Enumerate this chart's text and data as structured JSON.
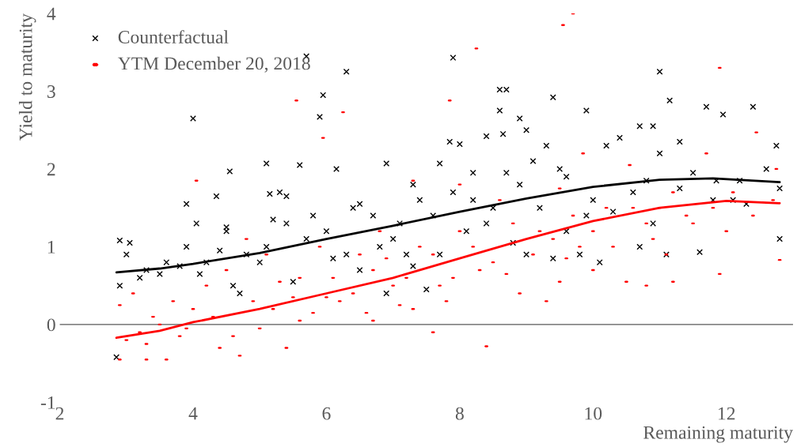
{
  "chart_data": {
    "type": "scatter",
    "xlabel": "Remaining maturity",
    "ylabel": "Yield to maturity",
    "xlim": [
      2,
      13
    ],
    "ylim": [
      -1,
      4
    ],
    "xticks": [
      2,
      4,
      6,
      8,
      10,
      12
    ],
    "yticks": [
      -1,
      0,
      1,
      2,
      3,
      4
    ],
    "grid": false,
    "legend": "top left",
    "ref_lines": [
      {
        "axis": "y",
        "value": 0,
        "color": "#595959"
      }
    ],
    "series": [
      {
        "name": "Counterfactual",
        "marker": "cross",
        "color": "#000000",
        "x": [
          4.0,
          4.35,
          4.55,
          5.1,
          5.15,
          5.3,
          5.6,
          5.7,
          5.9,
          5.95,
          6.15,
          6.3,
          6.9,
          7.3,
          7.7,
          7.85,
          7.9,
          8.0,
          8.2,
          8.4,
          8.6,
          8.6,
          8.7,
          8.65,
          8.9,
          9.0,
          9.1,
          9.3,
          9.4,
          9.5,
          9.6,
          9.9,
          10.2,
          10.4,
          10.7,
          10.9,
          11.0,
          11.0,
          11.15,
          11.3,
          11.5,
          11.7,
          11.85,
          11.95,
          12.1,
          12.2,
          12.4,
          12.6,
          12.75,
          12.8,
          12.8,
          11.6,
          11.1,
          10.7,
          10.1,
          9.8,
          9.4,
          9.0,
          8.8,
          8.5,
          8.1,
          7.7,
          7.4,
          7.1,
          6.8,
          6.5,
          6.3,
          6.0,
          5.7,
          5.4,
          5.1,
          4.8,
          4.5,
          4.2,
          3.9,
          3.6,
          3.3,
          3.0,
          2.9,
          2.85,
          2.9,
          3.05,
          3.2,
          3.5,
          3.8,
          4.1,
          4.4,
          4.7,
          5.0,
          5.2,
          5.5,
          5.8,
          6.1,
          6.4,
          6.7,
          7.0,
          7.3,
          7.6,
          7.9,
          8.2,
          8.4,
          8.9,
          9.2,
          9.6,
          10.0,
          10.3,
          10.6,
          10.9,
          11.3,
          11.8,
          12.3,
          6.9,
          7.5,
          4.6,
          3.9,
          4.05,
          4.5,
          5.4,
          6.5,
          7.2,
          8.7,
          9.9,
          10.8
        ],
        "values": [
          2.65,
          1.65,
          1.97,
          2.07,
          1.68,
          1.7,
          2.05,
          3.45,
          2.67,
          2.95,
          2.0,
          3.25,
          2.07,
          1.8,
          2.07,
          2.35,
          3.43,
          2.32,
          1.95,
          2.42,
          2.75,
          3.02,
          3.02,
          2.45,
          2.65,
          2.5,
          2.1,
          2.3,
          2.92,
          2.0,
          1.9,
          2.75,
          2.3,
          2.4,
          2.55,
          2.55,
          3.25,
          2.2,
          2.88,
          2.35,
          1.95,
          2.8,
          1.85,
          2.7,
          1.6,
          1.85,
          2.8,
          2.0,
          2.3,
          1.75,
          1.1,
          0.93,
          0.9,
          1.0,
          0.8,
          0.9,
          0.85,
          0.9,
          1.05,
          1.5,
          1.2,
          0.9,
          1.6,
          1.3,
          1.0,
          0.7,
          0.9,
          1.2,
          1.1,
          1.3,
          1.0,
          0.9,
          1.2,
          0.8,
          1.0,
          0.8,
          0.7,
          0.9,
          0.5,
          -0.42,
          1.08,
          1.05,
          0.6,
          0.65,
          0.75,
          0.65,
          0.95,
          0.4,
          0.8,
          1.35,
          0.55,
          1.4,
          0.85,
          1.5,
          1.4,
          1.1,
          0.75,
          1.4,
          1.7,
          1.6,
          1.3,
          1.8,
          1.5,
          1.2,
          1.6,
          1.45,
          1.7,
          1.3,
          1.75,
          1.6,
          1.55,
          0.4,
          0.45,
          0.5,
          1.55,
          1.3,
          1.25,
          1.65,
          1.55,
          0.9,
          1.95,
          1.4,
          1.85
        ]
      },
      {
        "name": "YTM December 20, 2018",
        "color": "#ff0000",
        "x": [
          9.7,
          9.55,
          8.25,
          11.9,
          5.55,
          6.25,
          7.85,
          12.45,
          5.95,
          9.85,
          10.55,
          11.7,
          12.75,
          4.05,
          7.3,
          8.0,
          9.5,
          11.0,
          12.8,
          11.9,
          11.2,
          10.8,
          10.0,
          9.3,
          8.4,
          7.6,
          6.7,
          5.4,
          4.7,
          3.6,
          3.3,
          2.9,
          3.0,
          3.2,
          3.5,
          3.8,
          4.0,
          4.3,
          4.6,
          4.9,
          5.2,
          5.5,
          5.8,
          6.1,
          6.4,
          6.7,
          7.0,
          7.3,
          7.6,
          7.9,
          8.2,
          8.5,
          8.8,
          9.1,
          9.4,
          9.7,
          10.0,
          10.3,
          10.6,
          10.9,
          11.2,
          11.5,
          11.8,
          12.1,
          12.4,
          12.7,
          2.9,
          3.1,
          3.4,
          3.7,
          4.2,
          4.5,
          4.8,
          5.1,
          5.6,
          5.9,
          6.2,
          6.5,
          6.8,
          7.1,
          7.4,
          7.7,
          8.0,
          8.3,
          8.6,
          8.9,
          9.2,
          9.5,
          9.8,
          10.2,
          10.5,
          10.8,
          11.1,
          11.4,
          12.0,
          3.3,
          3.9,
          4.4,
          5.0,
          5.6,
          6.0,
          6.6,
          7.2,
          7.8,
          8.7,
          9.6,
          5.3,
          6.9
        ],
        "values": [
          4.0,
          3.85,
          3.55,
          3.3,
          2.88,
          2.73,
          2.88,
          2.47,
          2.4,
          2.2,
          2.05,
          2.2,
          2.0,
          1.85,
          1.85,
          1.8,
          1.75,
          1.5,
          0.83,
          0.65,
          0.55,
          0.5,
          0.7,
          0.3,
          -0.28,
          -0.1,
          0.05,
          -0.3,
          -0.4,
          -0.45,
          -0.45,
          -0.45,
          -0.2,
          -0.1,
          0.0,
          -0.15,
          0.2,
          0.1,
          -0.15,
          0.3,
          0.2,
          0.35,
          0.15,
          0.6,
          0.4,
          0.7,
          0.5,
          0.2,
          0.9,
          0.6,
          1.0,
          0.8,
          1.3,
          0.9,
          1.1,
          1.4,
          1.2,
          1.0,
          1.5,
          1.1,
          1.7,
          1.3,
          1.5,
          1.7,
          1.4,
          1.6,
          0.25,
          0.4,
          0.1,
          0.3,
          0.5,
          0.7,
          1.1,
          0.9,
          0.6,
          1.0,
          0.3,
          0.9,
          1.2,
          0.25,
          1.0,
          0.5,
          1.2,
          0.7,
          1.6,
          0.4,
          1.2,
          0.55,
          1.0,
          1.5,
          0.55,
          1.3,
          0.9,
          1.4,
          1.2,
          -0.25,
          -0.05,
          -0.3,
          -0.05,
          0.05,
          0.35,
          0.15,
          0.6,
          0.3,
          0.65,
          0.85,
          0.55,
          0.85
        ]
      },
      {
        "type": "line",
        "color": "#000000",
        "line_style": "solid",
        "x": [
          2.85,
          3.5,
          4,
          5,
          6,
          7,
          8,
          9,
          10,
          11,
          11.8,
          12.8
        ],
        "values": [
          0.67,
          0.72,
          0.78,
          0.92,
          1.1,
          1.27,
          1.45,
          1.62,
          1.77,
          1.86,
          1.88,
          1.83
        ]
      },
      {
        "type": "line",
        "color": "#ff0000",
        "line_style": "solid",
        "x": [
          2.85,
          3.5,
          4,
          5,
          6,
          7,
          8,
          9,
          10,
          11,
          12,
          12.8
        ],
        "values": [
          -0.17,
          -0.08,
          0.03,
          0.2,
          0.4,
          0.6,
          0.85,
          1.1,
          1.33,
          1.5,
          1.59,
          1.56
        ]
      }
    ]
  }
}
